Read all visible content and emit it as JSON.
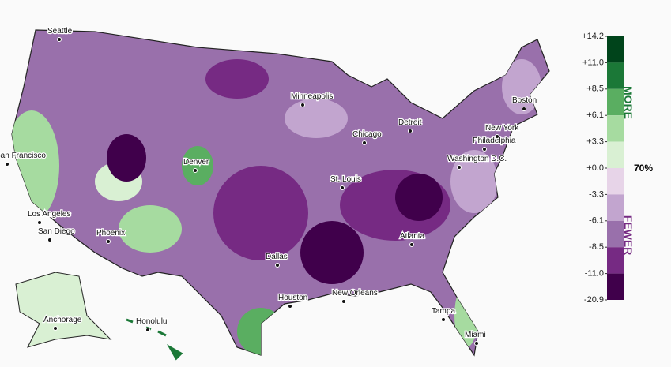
{
  "legend": {
    "ticks": [
      "+14.2",
      "+11.0",
      "+8.5",
      "+6.1",
      "+3.3",
      "+0.0",
      "-3.3",
      "-6.1",
      "-8.5",
      "-11.0",
      "-20.9"
    ],
    "colors": [
      "#00441b",
      "#1b7837",
      "#5aae61",
      "#a6dba0",
      "#d9f0d3",
      "#e7d4e8",
      "#c2a5cf",
      "#9970ab",
      "#762a83",
      "#40004b"
    ],
    "more": "MORE",
    "fewer": "FEWER",
    "center": "70%"
  },
  "cities": [
    "Seattle",
    "San Francisco",
    "Los Angeles",
    "San Diego",
    "Phoenix",
    "Denver",
    "Minneapolis",
    "Chicago",
    "Detroit",
    "St. Louis",
    "Dallas",
    "Houston",
    "New Orleans",
    "Atlanta",
    "Tampa",
    "Miami",
    "Washington D.C.",
    "Philadelphia",
    "New York",
    "Boston",
    "Anchorage",
    "Honolulu"
  ]
}
